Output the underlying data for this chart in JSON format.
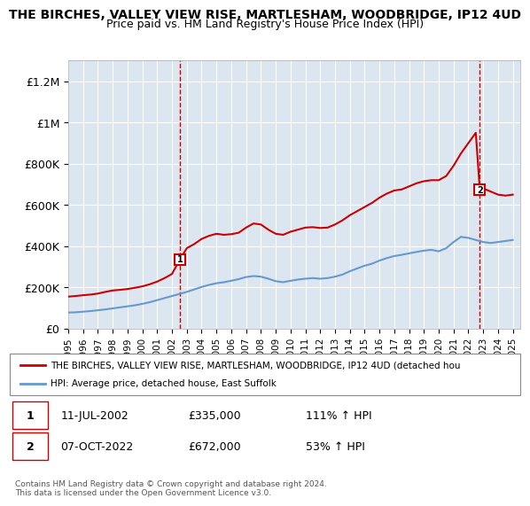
{
  "title": "THE BIRCHES, VALLEY VIEW RISE, MARTLESHAM, WOODBRIDGE, IP12 4UD",
  "subtitle": "Price paid vs. HM Land Registry's House Price Index (HPI)",
  "background_color": "#dce6f0",
  "plot_bg_color": "#dce6f0",
  "red_line_color": "#cc0000",
  "blue_line_color": "#6699cc",
  "ylim": [
    0,
    1300000
  ],
  "yticks": [
    0,
    200000,
    400000,
    600000,
    800000,
    1000000,
    1200000
  ],
  "ytick_labels": [
    "£0",
    "£200K",
    "£400K",
    "£600K",
    "£800K",
    "£1M",
    "£1.2M"
  ],
  "sale1_x": 2002.53,
  "sale1_y": 335000,
  "sale1_label": "1",
  "sale2_x": 2022.77,
  "sale2_y": 672000,
  "sale2_label": "2",
  "legend_red_label": "THE BIRCHES, VALLEY VIEW RISE, MARTLESHAM, WOODBRIDGE, IP12 4UD (detached hou",
  "legend_blue_label": "HPI: Average price, detached house, East Suffolk",
  "table_row1": [
    "1",
    "11-JUL-2002",
    "£335,000",
    "111% ↑ HPI"
  ],
  "table_row2": [
    "2",
    "07-OCT-2022",
    "£672,000",
    "53% ↑ HPI"
  ],
  "copyright_text": "Contains HM Land Registry data © Crown copyright and database right 2024.\nThis data is licensed under the Open Government Licence v3.0.",
  "xmin": 1995,
  "xmax": 2025.5,
  "red_x": [
    1995.0,
    1995.5,
    1996.0,
    1996.5,
    1997.0,
    1997.5,
    1998.0,
    1998.5,
    1999.0,
    1999.5,
    2000.0,
    2000.5,
    2001.0,
    2001.5,
    2002.0,
    2002.53,
    2003.0,
    2003.5,
    2004.0,
    2004.5,
    2005.0,
    2005.5,
    2006.0,
    2006.5,
    2007.0,
    2007.5,
    2008.0,
    2008.5,
    2009.0,
    2009.5,
    2010.0,
    2010.5,
    2011.0,
    2011.5,
    2012.0,
    2012.5,
    2013.0,
    2013.5,
    2014.0,
    2014.5,
    2015.0,
    2015.5,
    2016.0,
    2016.5,
    2017.0,
    2017.5,
    2018.0,
    2018.5,
    2019.0,
    2019.5,
    2020.0,
    2020.5,
    2021.0,
    2021.5,
    2022.0,
    2022.5,
    2022.77,
    2023.0,
    2023.5,
    2024.0,
    2024.5,
    2025.0
  ],
  "red_y": [
    155000,
    158000,
    162000,
    165000,
    170000,
    178000,
    185000,
    188000,
    192000,
    198000,
    205000,
    215000,
    228000,
    245000,
    265000,
    335000,
    390000,
    410000,
    435000,
    450000,
    460000,
    455000,
    458000,
    465000,
    490000,
    510000,
    505000,
    480000,
    460000,
    455000,
    470000,
    480000,
    490000,
    492000,
    488000,
    490000,
    505000,
    525000,
    550000,
    570000,
    590000,
    610000,
    635000,
    655000,
    670000,
    675000,
    690000,
    705000,
    715000,
    720000,
    720000,
    740000,
    790000,
    850000,
    900000,
    950000,
    672000,
    680000,
    665000,
    650000,
    645000,
    650000
  ],
  "blue_x": [
    1995.0,
    1995.5,
    1996.0,
    1996.5,
    1997.0,
    1997.5,
    1998.0,
    1998.5,
    1999.0,
    1999.5,
    2000.0,
    2000.5,
    2001.0,
    2001.5,
    2002.0,
    2002.5,
    2003.0,
    2003.5,
    2004.0,
    2004.5,
    2005.0,
    2005.5,
    2006.0,
    2006.5,
    2007.0,
    2007.5,
    2008.0,
    2008.5,
    2009.0,
    2009.5,
    2010.0,
    2010.5,
    2011.0,
    2011.5,
    2012.0,
    2012.5,
    2013.0,
    2013.5,
    2014.0,
    2014.5,
    2015.0,
    2015.5,
    2016.0,
    2016.5,
    2017.0,
    2017.5,
    2018.0,
    2018.5,
    2019.0,
    2019.5,
    2020.0,
    2020.5,
    2021.0,
    2021.5,
    2022.0,
    2022.5,
    2023.0,
    2023.5,
    2024.0,
    2024.5,
    2025.0
  ],
  "blue_y": [
    78000,
    79000,
    82000,
    85000,
    89000,
    93000,
    98000,
    103000,
    108000,
    113000,
    120000,
    128000,
    138000,
    148000,
    158000,
    168000,
    178000,
    190000,
    202000,
    212000,
    220000,
    225000,
    232000,
    240000,
    250000,
    255000,
    252000,
    242000,
    230000,
    225000,
    232000,
    238000,
    242000,
    245000,
    242000,
    245000,
    252000,
    262000,
    278000,
    292000,
    305000,
    315000,
    330000,
    342000,
    352000,
    358000,
    365000,
    372000,
    378000,
    382000,
    375000,
    390000,
    420000,
    445000,
    440000,
    430000,
    420000,
    415000,
    420000,
    425000,
    430000
  ]
}
